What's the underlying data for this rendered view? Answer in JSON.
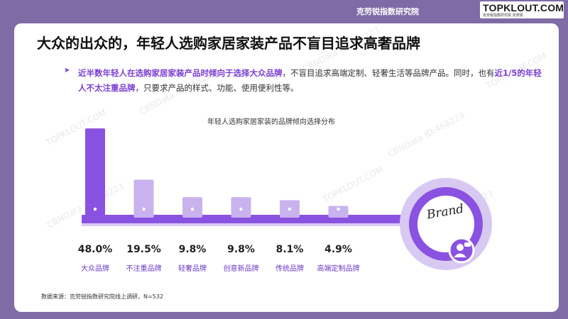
{
  "header": {
    "institute": "克劳锐指数研究院",
    "logo_main": "TOPKLOUT.COM",
    "logo_sub": "克劳锐指数研究院 克劳锐"
  },
  "title": "大众的出众的，年轻人选购家居家装产品不盲目追求高奢品牌",
  "description": {
    "part1": "近半数年轻人在选购家居家装产品时倾向于选择大众品牌",
    "part2": "，不盲目追求高端定制、轻奢生活等品牌产品。同时，也有",
    "part3": "近1/5的年轻人不太注重品牌",
    "part4": "，只要求产品的样式、功能、使用便利性等。"
  },
  "chart_data": {
    "type": "bar",
    "title": "年轻人选购家居家装的品牌倾向选择分布",
    "categories": [
      "大众品牌",
      "不注重品牌",
      "轻奢品牌",
      "创意新品牌",
      "传统品牌",
      "高端定制品牌"
    ],
    "values": [
      48.0,
      19.5,
      9.8,
      9.8,
      8.1,
      4.9
    ],
    "value_labels": [
      "48.0%",
      "19.5%",
      "9.8%",
      "9.8%",
      "8.1%",
      "4.9%"
    ],
    "unit": "%",
    "ylim": [
      0,
      50
    ],
    "badge_text": "Brand",
    "colors": {
      "bar_first": "#8a52e0",
      "bar_other": "#c8b3ee",
      "baseline": "#8a52e0",
      "ring": "#8a52e0"
    }
  },
  "footer": {
    "source": "数据来源：克劳锐指数研究院线上调研，N=532"
  },
  "watermarks": [
    "TOPKLOUT.COM",
    "CBNData ID:468223"
  ]
}
